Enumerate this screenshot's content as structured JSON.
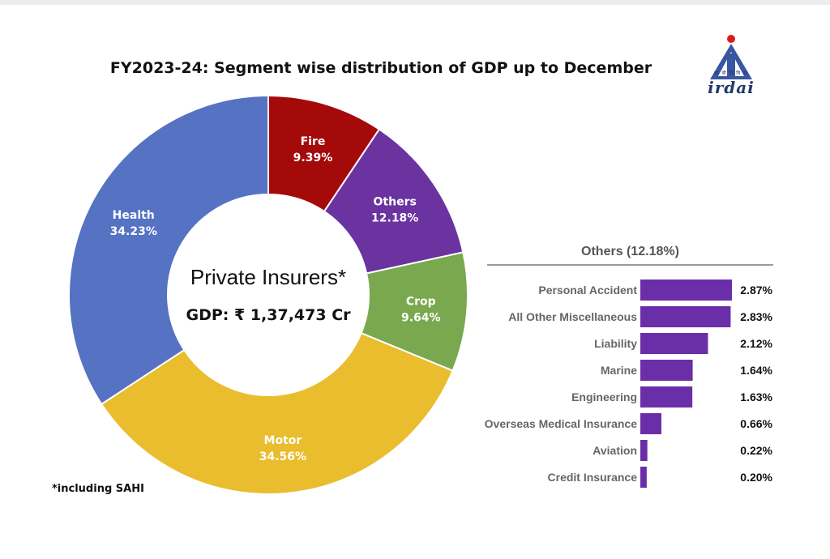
{
  "title": "FY2023-24: Segment wise distribution of GDP up to December",
  "logo": {
    "text": "irdai",
    "tagline": "भा बी वि वि प्रा"
  },
  "center": {
    "title": "Private Insurers*",
    "gdp": "GDP: ₹ 1,37,473 Cr"
  },
  "footnote": "*including SAHI",
  "colors": {
    "fire": "#a50a0a",
    "others": "#6a33a0",
    "crop": "#79a84e",
    "motor": "#e9bd2d",
    "health": "#5572c3",
    "bar": "#6a2fa8"
  },
  "chart_data": [
    {
      "type": "pie",
      "subtype": "donut",
      "title": "FY2023-24: Segment wise distribution of GDP up to December",
      "slices": [
        {
          "name": "Fire",
          "value": 9.39,
          "label": "9.39%",
          "color": "#a50a0a"
        },
        {
          "name": "Others",
          "value": 12.18,
          "label": "12.18%",
          "color": "#6a33a0"
        },
        {
          "name": "Crop",
          "value": 9.64,
          "label": "9.64%",
          "color": "#79a84e"
        },
        {
          "name": "Motor",
          "value": 34.56,
          "label": "34.56%",
          "color": "#e9bd2d"
        },
        {
          "name": "Health",
          "value": 34.23,
          "label": "34.23%",
          "color": "#5572c3"
        }
      ],
      "start_angle_deg": 0,
      "direction": "clockwise"
    },
    {
      "type": "bar",
      "orientation": "horizontal",
      "title": "Others (12.18%)",
      "categories": [
        "Personal Accident",
        "All Other Miscellaneous",
        "Liability",
        "Marine",
        "Engineering",
        "Overseas Medical Insurance",
        "Aviation",
        "Credit Insurance"
      ],
      "values": [
        2.87,
        2.83,
        2.12,
        1.64,
        1.63,
        0.66,
        0.22,
        0.2
      ],
      "value_labels": [
        "2.87%",
        "2.83%",
        "2.12%",
        "1.64%",
        "1.63%",
        "0.66%",
        "0.22%",
        "0.20%"
      ],
      "color": "#6a2fa8",
      "xlim": [
        0,
        2.87
      ]
    }
  ]
}
